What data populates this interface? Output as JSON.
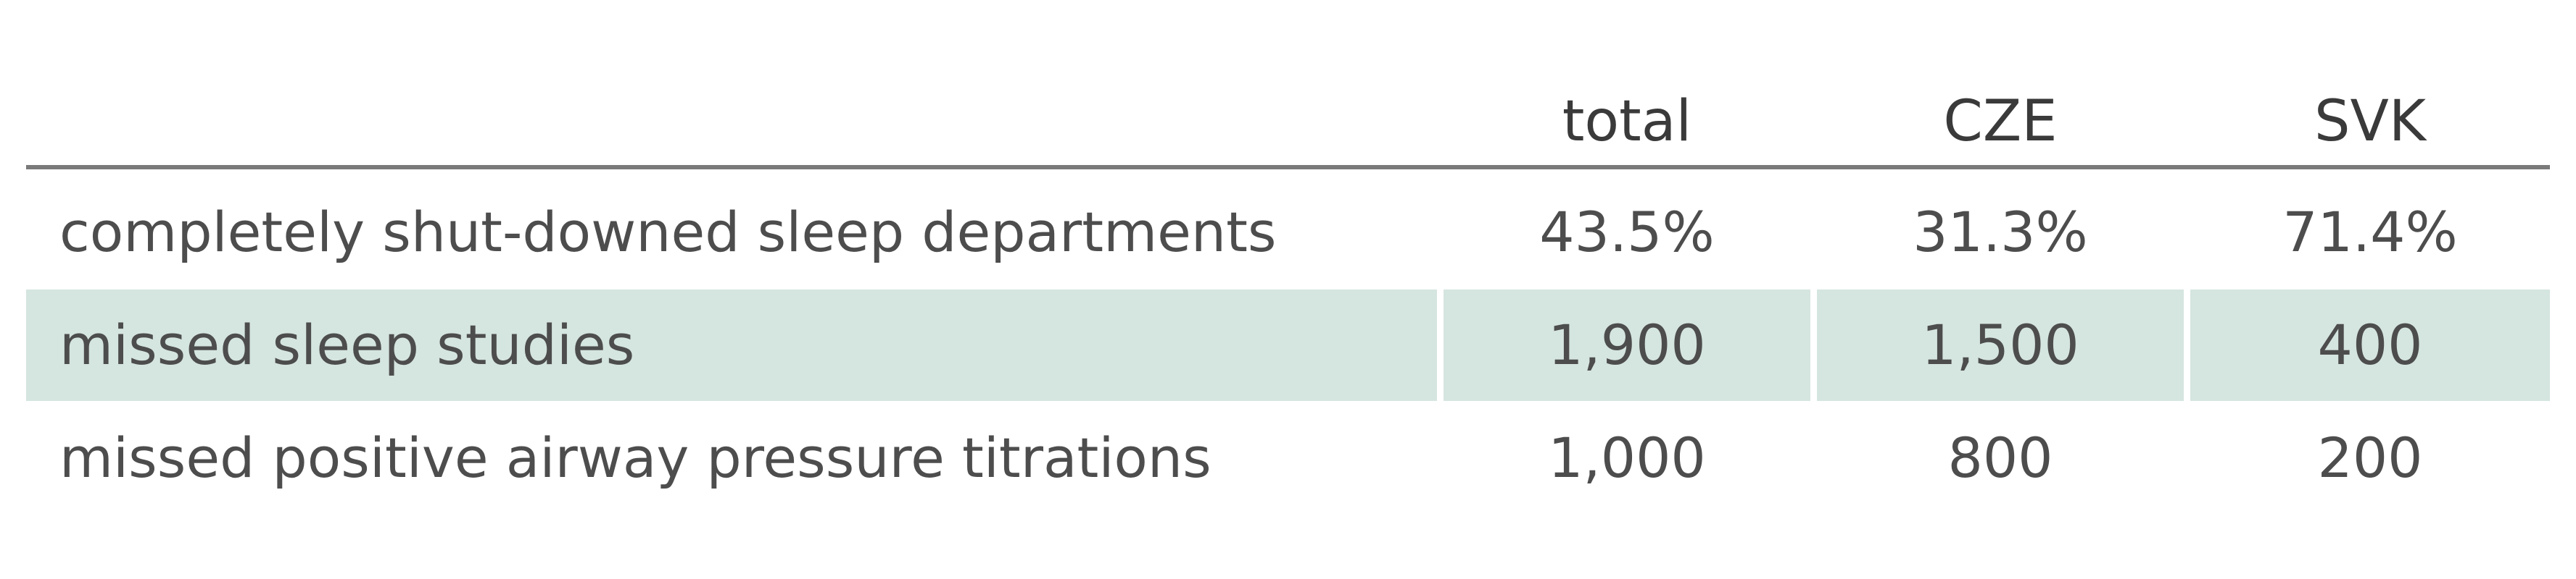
{
  "table": {
    "columns": [
      "",
      "total",
      "CZE",
      "SVK"
    ],
    "rows": [
      {
        "label": "completely shut-downed sleep departments",
        "total": "43.5%",
        "cze": "31.3%",
        "svk": "71.4%"
      },
      {
        "label": "missed sleep studies",
        "total": "1,900",
        "cze": "1,500",
        "svk": "400"
      },
      {
        "label": "missed positive airway pressure titrations",
        "total": "1,000",
        "cze": "800",
        "svk": "200"
      }
    ],
    "shaded_row_color": "#d5e5e0",
    "rule_color": "#7a7a7a"
  }
}
